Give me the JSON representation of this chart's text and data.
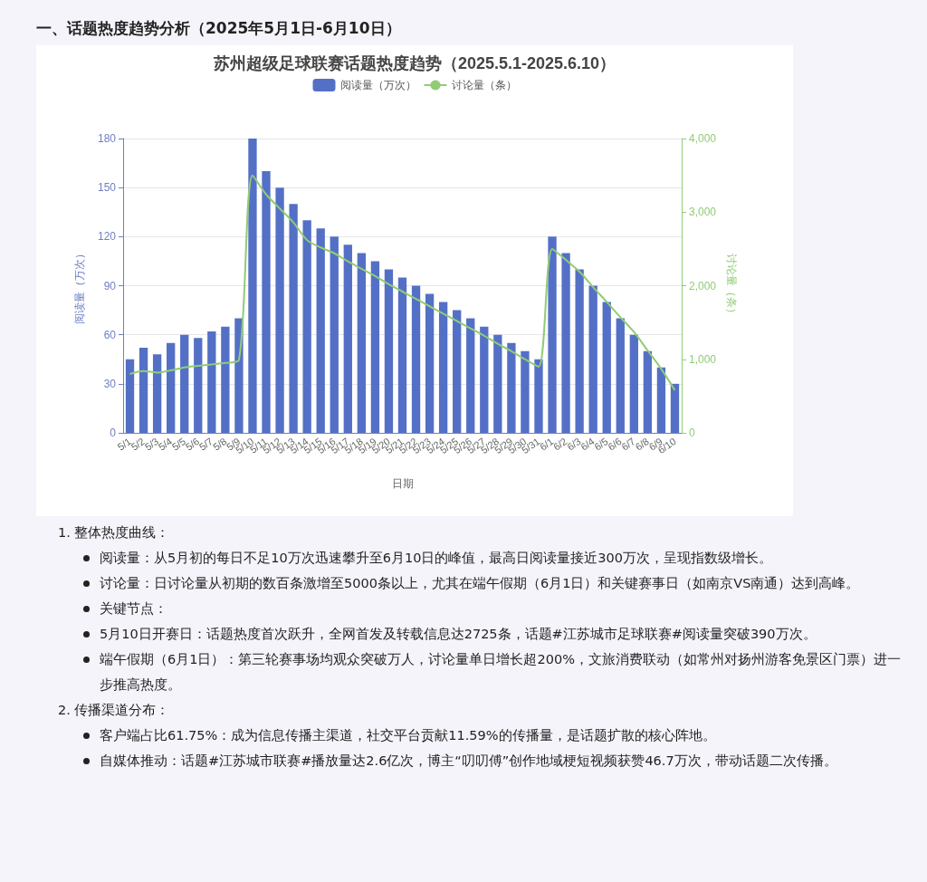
{
  "chart_data": {
    "type": "bar",
    "subtitle": "一、话题热度趋势分析（2025年5月1日-6月10日）",
    "title": "苏州超级足球联赛话题热度趋势（2025.5.1-2025.6.10）",
    "xlabel": "日期",
    "ylabel": "阅读量（万次）",
    "y2label": "讨论量（条）",
    "categories": [
      "5/1",
      "5/2",
      "5/3",
      "5/4",
      "5/5",
      "5/6",
      "5/7",
      "5/8",
      "5/9",
      "5/10",
      "5/11",
      "5/12",
      "5/13",
      "5/14",
      "5/15",
      "5/16",
      "5/17",
      "5/18",
      "5/19",
      "5/20",
      "5/21",
      "5/22",
      "5/23",
      "5/24",
      "5/25",
      "5/26",
      "5/27",
      "5/28",
      "5/29",
      "5/30",
      "5/31",
      "6/1",
      "6/2",
      "6/3",
      "6/4",
      "6/5",
      "6/6",
      "6/7",
      "6/8",
      "6/9",
      "6/10"
    ],
    "series": [
      {
        "name": "阅读量（万次）",
        "color": "#5470c6",
        "values": [
          45,
          52,
          48,
          55,
          60,
          58,
          62,
          65,
          70,
          180,
          160,
          150,
          140,
          130,
          125,
          120,
          115,
          110,
          105,
          100,
          95,
          90,
          85,
          80,
          75,
          70,
          65,
          60,
          55,
          50,
          45,
          120,
          110,
          100,
          90,
          80,
          70,
          60,
          50,
          40,
          30
        ]
      },
      {
        "name": "讨论量（条）",
        "type": "line",
        "axis": "y2",
        "color": "#91cc75",
        "marker": "none",
        "values": [
          800,
          840,
          820,
          850,
          890,
          910,
          930,
          950,
          990,
          3500,
          3240,
          3050,
          2860,
          2620,
          2520,
          2440,
          2330,
          2230,
          2130,
          2020,
          1920,
          1820,
          1720,
          1620,
          1520,
          1420,
          1320,
          1210,
          1110,
          1000,
          900,
          2500,
          2350,
          2190,
          1980,
          1780,
          1570,
          1370,
          1120,
          870,
          580
        ]
      }
    ],
    "ylim": [
      0,
      180
    ],
    "yticks": [
      0,
      30,
      60,
      90,
      120,
      150,
      180
    ],
    "y2lim": [
      0,
      4000
    ],
    "y2ticks": [
      0,
      {
        "value": 1000,
        "label": "1,000"
      },
      {
        "value": 2000,
        "label": "2,000"
      },
      {
        "value": 3000,
        "label": "3,000"
      },
      {
        "value": 4000,
        "label": "4,000"
      }
    ],
    "grid": "y",
    "legend": "top",
    "annotations": [
      "1. 整体热度曲线：",
      "阅读量：从5月初的每日不足10万次迅速攀升至6月10日的峰值，最高日阅读量接近300万次，呈现指数级增长。",
      "讨论量：日讨论量从初期的数百条激增至5000条以上，尤其在端午假期（6月1日）和关键赛事日（如南京VS南通）达到高峰。",
      "关键节点：",
      "5月10日开赛日：话题热度首次跃升，全网首发及转载信息达2725条，话题#江苏城市足球联赛#阅读量突破390万次。",
      "端午假期（6月1日）：第三轮赛事场均观众突破万人，讨论量单日增长超200%，文旅消费联动（如常州对扬州游客免景区门票）进一步推高热度。",
      "2. 传播渠道分布：",
      "客户端占比61.75%：成为信息传播主渠道，社交平台贡献11.59%的传播量，是话题扩散的核心阵地。",
      "自媒体推动：话题#江苏城市联赛#播放量达2.6亿次，博主“叨叨傅”创作地域梗短视频获赞46.7万次，带动话题二次传播。"
    ]
  }
}
